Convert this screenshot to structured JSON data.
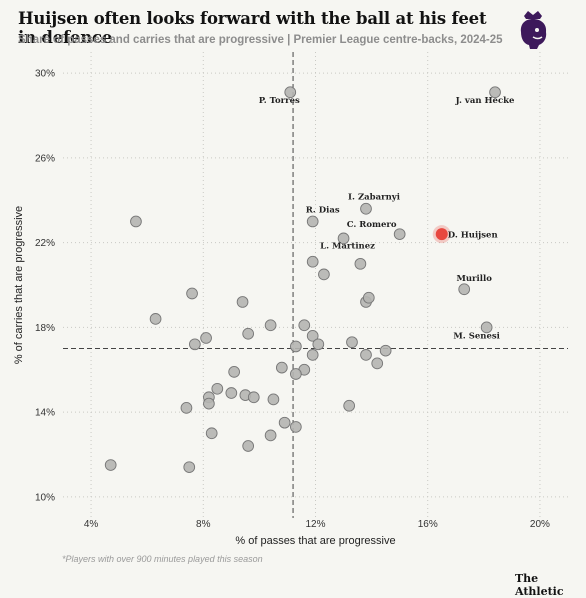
{
  "header": {
    "title": "Huijsen often looks forward with the ball at his feet in defence",
    "subtitle": "Share of passes and carries that are progressive | Premier League centre-backs, 2024-25"
  },
  "logo": {
    "icon": "premier-league-lion-icon",
    "color": "#3d195b"
  },
  "footer": {
    "footnote": "*Players with over 900 minutes played this season",
    "brand": "The Athletic"
  },
  "colors": {
    "point_fill": "#b5b5b1",
    "point_stroke": "#777777",
    "highlight": "#e8473f",
    "grid": "#c9c9c4",
    "reference_line": "#444444"
  },
  "chart_data": {
    "type": "scatter",
    "xlabel": "% of passes that are progressive",
    "ylabel": "% of carries that are progressive",
    "xlim": [
      3,
      21
    ],
    "ylim": [
      9,
      31
    ],
    "x_ticks": [
      4,
      8,
      12,
      16,
      20
    ],
    "x_tick_labels": [
      "4%",
      "8%",
      "12%",
      "16%",
      "20%"
    ],
    "y_ticks": [
      10,
      14,
      18,
      22,
      26,
      30
    ],
    "y_tick_labels": [
      "10%",
      "14%",
      "18%",
      "22%",
      "26%",
      "30%"
    ],
    "grid": true,
    "reference_lines": {
      "x": 11.2,
      "y": 17.0
    },
    "highlight_player": "D. Huijsen",
    "points": [
      {
        "x": 11.1,
        "y": 29.1,
        "label": "P. Torres"
      },
      {
        "x": 18.4,
        "y": 29.1,
        "label": "J. van Hecke"
      },
      {
        "x": 13.8,
        "y": 23.6,
        "label": "I. Zabarnyi"
      },
      {
        "x": 11.9,
        "y": 23.0,
        "label": "R. Dias"
      },
      {
        "x": 15.0,
        "y": 22.4,
        "label": "C. Romero"
      },
      {
        "x": 16.5,
        "y": 22.4,
        "label": "D. Huijsen"
      },
      {
        "x": 13.0,
        "y": 22.2,
        "label": "L. Martinez"
      },
      {
        "x": 17.3,
        "y": 19.8,
        "label": "Murillo"
      },
      {
        "x": 18.1,
        "y": 18.0,
        "label": "M. Senesi"
      },
      {
        "x": 5.6,
        "y": 23.0
      },
      {
        "x": 11.9,
        "y": 21.1
      },
      {
        "x": 13.6,
        "y": 21.0
      },
      {
        "x": 12.3,
        "y": 20.5
      },
      {
        "x": 7.6,
        "y": 19.6
      },
      {
        "x": 9.4,
        "y": 19.2
      },
      {
        "x": 13.8,
        "y": 19.2
      },
      {
        "x": 13.9,
        "y": 19.4
      },
      {
        "x": 6.3,
        "y": 18.4
      },
      {
        "x": 10.4,
        "y": 18.1
      },
      {
        "x": 11.6,
        "y": 18.1
      },
      {
        "x": 9.6,
        "y": 17.7
      },
      {
        "x": 11.9,
        "y": 17.6
      },
      {
        "x": 8.1,
        "y": 17.5
      },
      {
        "x": 7.7,
        "y": 17.2
      },
      {
        "x": 12.1,
        "y": 17.2
      },
      {
        "x": 13.3,
        "y": 17.3
      },
      {
        "x": 11.3,
        "y": 17.1
      },
      {
        "x": 14.5,
        "y": 16.9
      },
      {
        "x": 11.9,
        "y": 16.7
      },
      {
        "x": 13.8,
        "y": 16.7
      },
      {
        "x": 14.2,
        "y": 16.3
      },
      {
        "x": 10.8,
        "y": 16.1
      },
      {
        "x": 11.6,
        "y": 16.0
      },
      {
        "x": 11.3,
        "y": 15.8
      },
      {
        "x": 9.1,
        "y": 15.9
      },
      {
        "x": 8.5,
        "y": 15.1
      },
      {
        "x": 9.0,
        "y": 14.9
      },
      {
        "x": 9.5,
        "y": 14.8
      },
      {
        "x": 9.8,
        "y": 14.7
      },
      {
        "x": 8.2,
        "y": 14.7
      },
      {
        "x": 10.5,
        "y": 14.6
      },
      {
        "x": 8.2,
        "y": 14.4
      },
      {
        "x": 13.2,
        "y": 14.3
      },
      {
        "x": 7.4,
        "y": 14.2
      },
      {
        "x": 10.9,
        "y": 13.5
      },
      {
        "x": 11.3,
        "y": 13.3
      },
      {
        "x": 8.3,
        "y": 13.0
      },
      {
        "x": 10.4,
        "y": 12.9
      },
      {
        "x": 9.6,
        "y": 12.4
      },
      {
        "x": 4.7,
        "y": 11.5
      },
      {
        "x": 7.5,
        "y": 11.4
      }
    ]
  }
}
